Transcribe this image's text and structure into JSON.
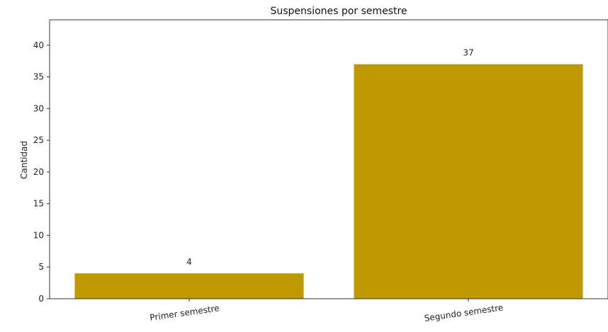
{
  "chart_data": {
    "type": "bar",
    "title": "Suspensiones por semestre",
    "xlabel": "",
    "ylabel": "Cantidad",
    "categories": [
      "Primer semestre",
      "Segundo semestre"
    ],
    "values": [
      4,
      37
    ],
    "data_labels": [
      "4",
      "37"
    ],
    "ylim": [
      0,
      44
    ],
    "yticks": [
      0,
      5,
      10,
      15,
      20,
      25,
      30,
      35,
      40
    ],
    "grid": false,
    "legend": "none",
    "bar_color": "#bf9900"
  }
}
